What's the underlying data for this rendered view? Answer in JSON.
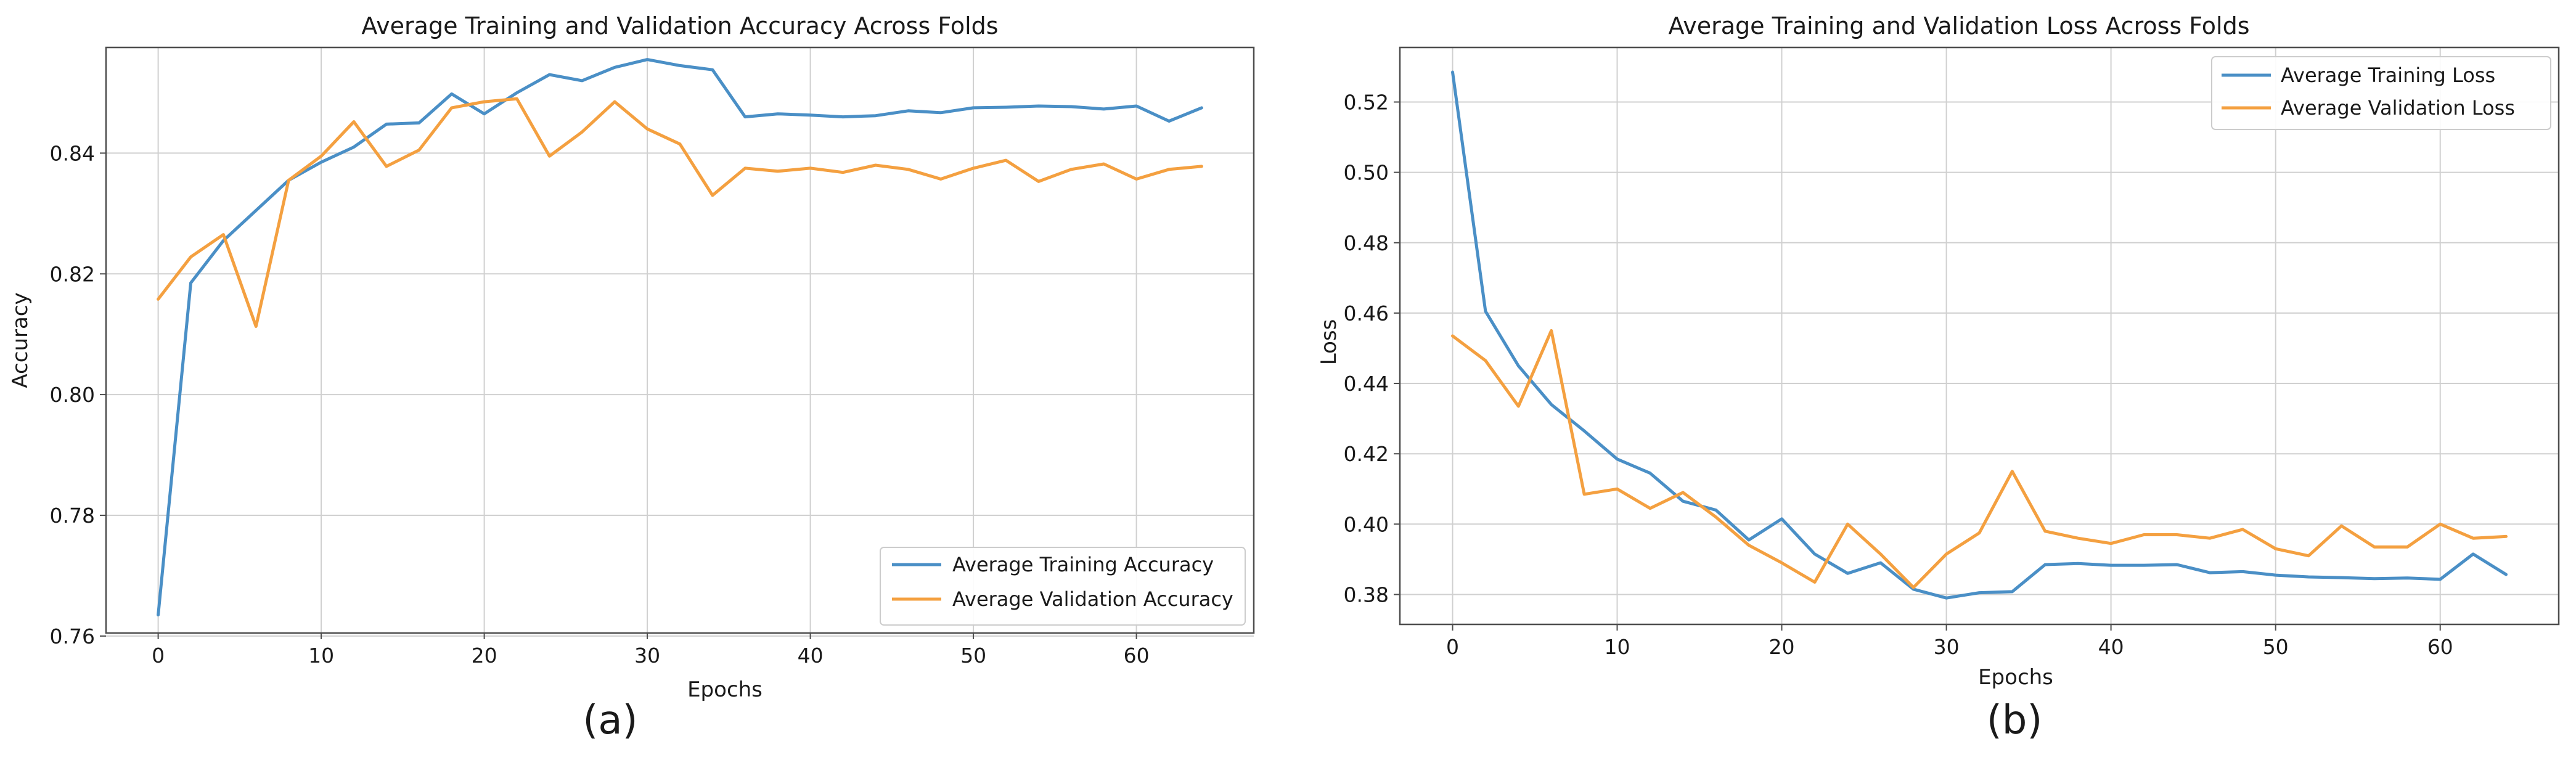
{
  "chart_data": [
    {
      "type": "line",
      "title": "Average Training and Validation Accuracy Across Folds",
      "xlabel": "Epochs",
      "ylabel": "Accuracy",
      "caption": "(a)",
      "xlim": [
        -3.2,
        67.2
      ],
      "ylim": [
        0.7605,
        0.8575
      ],
      "xticks": [
        0,
        10,
        20,
        30,
        40,
        50,
        60
      ],
      "yticks": [
        0.76,
        0.78,
        0.8,
        0.82,
        0.84
      ],
      "ytick_labels": [
        "0.76",
        "0.78",
        "0.80",
        "0.82",
        "0.84"
      ],
      "grid": true,
      "legend_position": "lower right",
      "x": [
        0,
        2,
        4,
        6,
        8,
        10,
        12,
        14,
        16,
        18,
        20,
        22,
        24,
        26,
        28,
        30,
        32,
        34,
        36,
        38,
        40,
        42,
        44,
        46,
        48,
        50,
        52,
        54,
        56,
        58,
        60,
        62,
        64
      ],
      "series": [
        {
          "name": "Average Training Accuracy",
          "color": "#4a8fc6",
          "values": [
            0.7635,
            0.8185,
            0.8255,
            0.8305,
            0.8355,
            0.8385,
            0.841,
            0.8448,
            0.845,
            0.8498,
            0.8465,
            0.85,
            0.853,
            0.852,
            0.8542,
            0.8555,
            0.8545,
            0.8538,
            0.846,
            0.8465,
            0.8463,
            0.846,
            0.8462,
            0.847,
            0.8467,
            0.8475,
            0.8476,
            0.8478,
            0.8477,
            0.8473,
            0.8478,
            0.8453,
            0.8475
          ]
        },
        {
          "name": "Average Validation Accuracy",
          "color": "#f4a040",
          "values": [
            0.8158,
            0.8228,
            0.8265,
            0.8113,
            0.8355,
            0.8395,
            0.8452,
            0.8378,
            0.8405,
            0.8475,
            0.8485,
            0.849,
            0.8395,
            0.8435,
            0.8485,
            0.844,
            0.8415,
            0.833,
            0.8375,
            0.837,
            0.8375,
            0.8368,
            0.838,
            0.8373,
            0.8357,
            0.8375,
            0.8388,
            0.8353,
            0.8373,
            0.8382,
            0.8357,
            0.8373,
            0.8378
          ]
        }
      ]
    },
    {
      "type": "line",
      "title": "Average Training and Validation Loss Across Folds",
      "xlabel": "Epochs",
      "ylabel": "Loss",
      "caption": "(b)",
      "xlim": [
        -3.2,
        67.2
      ],
      "ylim": [
        0.3715,
        0.5355
      ],
      "xticks": [
        0,
        10,
        20,
        30,
        40,
        50,
        60
      ],
      "yticks": [
        0.38,
        0.4,
        0.42,
        0.44,
        0.46,
        0.48,
        0.5,
        0.52
      ],
      "ytick_labels": [
        "0.38",
        "0.40",
        "0.42",
        "0.44",
        "0.46",
        "0.48",
        "0.50",
        "0.52"
      ],
      "grid": true,
      "legend_position": "upper right",
      "x": [
        0,
        2,
        4,
        6,
        8,
        10,
        12,
        14,
        16,
        18,
        20,
        22,
        24,
        26,
        28,
        30,
        32,
        34,
        36,
        38,
        40,
        42,
        44,
        46,
        48,
        50,
        52,
        54,
        56,
        58,
        60,
        62,
        64
      ],
      "series": [
        {
          "name": "Average Training Loss",
          "color": "#4a8fc6",
          "values": [
            0.5285,
            0.4605,
            0.445,
            0.434,
            0.4265,
            0.4185,
            0.4145,
            0.4065,
            0.404,
            0.3955,
            0.4015,
            0.3915,
            0.386,
            0.389,
            0.3815,
            0.379,
            0.3805,
            0.3808,
            0.3885,
            0.3888,
            0.3883,
            0.3883,
            0.3885,
            0.3862,
            0.3865,
            0.3855,
            0.385,
            0.3848,
            0.3845,
            0.3847,
            0.3843,
            0.3915,
            0.3857
          ]
        },
        {
          "name": "Average Validation Loss",
          "color": "#f4a040",
          "values": [
            0.4535,
            0.4465,
            0.4335,
            0.455,
            0.4085,
            0.41,
            0.4045,
            0.409,
            0.402,
            0.394,
            0.389,
            0.3835,
            0.4,
            0.3915,
            0.382,
            0.3915,
            0.3975,
            0.415,
            0.398,
            0.396,
            0.3945,
            0.397,
            0.397,
            0.396,
            0.3985,
            0.393,
            0.391,
            0.3995,
            0.3935,
            0.3935,
            0.4,
            0.396,
            0.3965
          ]
        }
      ]
    }
  ]
}
